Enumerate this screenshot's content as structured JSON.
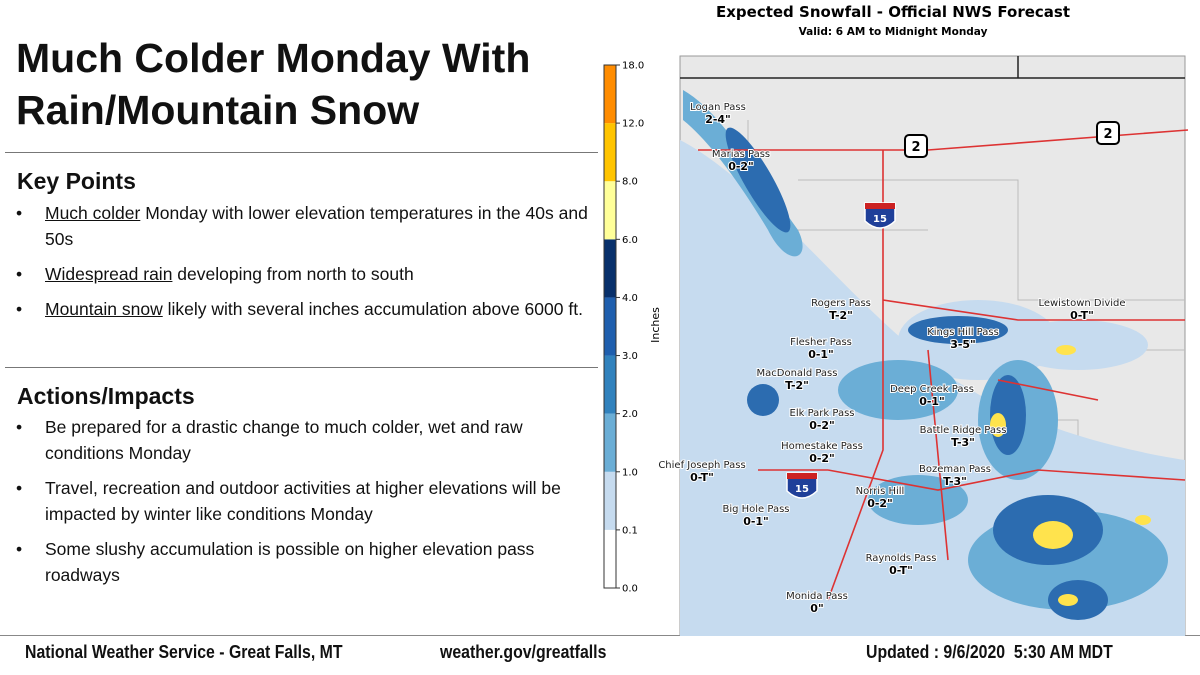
{
  "header": {
    "title_line1": "Much Colder Monday With",
    "title_line2": "Rain/Mountain Snow"
  },
  "key_points": {
    "heading": "Key Points",
    "items": [
      {
        "lead": "Much colder",
        "text": " Monday with lower elevation temperatures in the 40s and 50s"
      },
      {
        "lead": "Widespread rain",
        "text": " developing from north to south"
      },
      {
        "lead": "Mountain snow",
        "text": " likely with several inches accumulation above 6000 ft."
      }
    ]
  },
  "actions": {
    "heading": "Actions/Impacts",
    "items": [
      "Be prepared for a drastic change to much colder, wet and raw conditions Monday",
      "Travel, recreation and outdoor activities at higher elevations will be impacted by winter like conditions Monday",
      "Some slushy accumulation is possible on higher elevation pass roadways"
    ]
  },
  "footer": {
    "office": "National Weather Service - Great Falls, MT",
    "url": "weather.gov/greatfalls",
    "updated": "Updated : 9/6/2020  5:30 AM MDT"
  },
  "map": {
    "title": "Expected Snowfall - Official NWS Forecast",
    "subtitle": "Valid: 6 AM to Midnight Monday",
    "legend": {
      "label": "Inches",
      "ticks": [
        "0.0",
        "0.1",
        "1.0",
        "2.0",
        "3.0",
        "4.0",
        "6.0",
        "8.0",
        "12.0",
        "18.0"
      ],
      "colors": [
        "#ffffff",
        "#c6dbef",
        "#6baed6",
        "#3182bd",
        "#1f5fae",
        "#08306b",
        "#ffff99",
        "#ffc400",
        "#ff8c00"
      ]
    },
    "shields": [
      "2",
      "2",
      "15",
      "15"
    ],
    "passes": [
      {
        "name": "Logan Pass",
        "amount": "2-4\""
      },
      {
        "name": "Marias Pass",
        "amount": "0-2\""
      },
      {
        "name": "Rogers Pass",
        "amount": "T-2\""
      },
      {
        "name": "Flesher Pass",
        "amount": "0-1\""
      },
      {
        "name": "MacDonald Pass",
        "amount": "T-2\""
      },
      {
        "name": "Elk Park Pass",
        "amount": "0-2\""
      },
      {
        "name": "Homestake Pass",
        "amount": "0-2\""
      },
      {
        "name": "Chief Joseph Pass",
        "amount": "0-T\""
      },
      {
        "name": "Big Hole Pass",
        "amount": "0-1\""
      },
      {
        "name": "Norris Hill",
        "amount": "0-2\""
      },
      {
        "name": "Kings Hill Pass",
        "amount": "3-5\""
      },
      {
        "name": "Deep Creek Pass",
        "amount": "0-1\""
      },
      {
        "name": "Battle Ridge Pass",
        "amount": "T-3\""
      },
      {
        "name": "Bozeman Pass",
        "amount": "T-3\""
      },
      {
        "name": "Raynolds Pass",
        "amount": "0-T\""
      },
      {
        "name": "Monida Pass",
        "amount": "0\""
      },
      {
        "name": "Lewistown Divide",
        "amount": "0-T\""
      }
    ]
  }
}
